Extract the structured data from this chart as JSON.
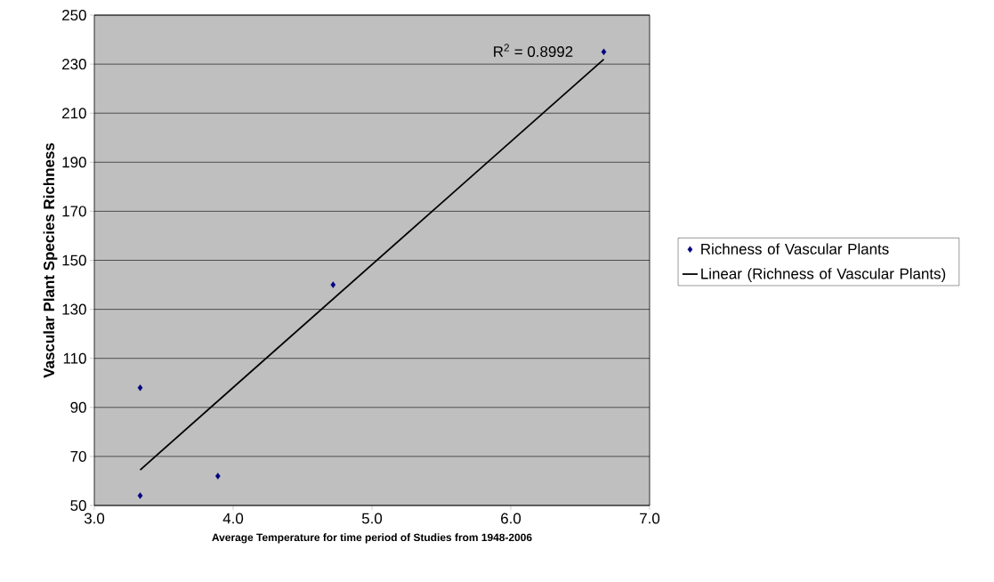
{
  "chart_data": {
    "type": "scatter",
    "xlabel": "Average Temperature for time period of Studies from 1948-2006",
    "ylabel": "Vascular Plant Species Richness",
    "series": [
      {
        "name": "Richness of Vascular Plants",
        "color": "#000080",
        "marker": "diamond",
        "x": [
          3.33,
          3.33,
          3.89,
          4.72,
          6.67
        ],
        "values": [
          98,
          54,
          62,
          140,
          235
        ]
      },
      {
        "name": "Linear (Richness of Vascular Plants)",
        "type": "line",
        "color": "#000000",
        "marker": "none",
        "line_style": "solid",
        "x": [
          3.33,
          6.67
        ],
        "values": [
          64.5,
          232
        ]
      }
    ],
    "annotations": [
      "R$^{2}$ = 0.8992"
    ],
    "xlim": [
      3,
      7
    ],
    "xticks": [
      {
        "value": 3,
        "label": "3.0"
      },
      {
        "value": 4,
        "label": "4.0"
      },
      {
        "value": 5,
        "label": "5.0"
      },
      {
        "value": 6,
        "label": "6.0"
      },
      {
        "value": 7,
        "label": "7.0"
      }
    ],
    "ylim": [
      50,
      250
    ],
    "yticks": [
      50,
      70,
      90,
      110,
      130,
      150,
      170,
      190,
      210,
      230,
      250
    ],
    "grid": "y",
    "legend": "right"
  }
}
